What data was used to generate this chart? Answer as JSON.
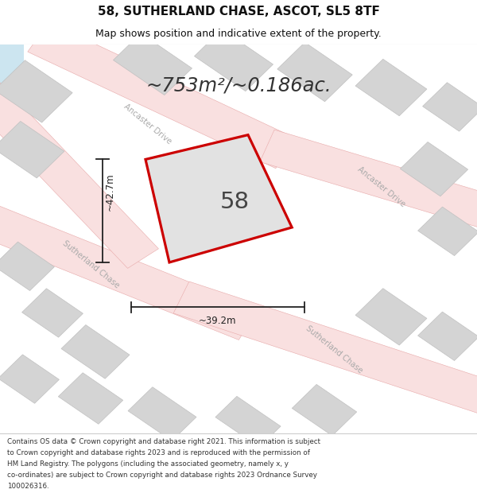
{
  "title_line1": "58, SUTHERLAND CHASE, ASCOT, SL5 8TF",
  "title_line2": "Map shows position and indicative extent of the property.",
  "area_text": "~753m²/~0.186ac.",
  "label_58": "58",
  "dim_vertical": "~42.7m",
  "dim_horizontal": "~39.2m",
  "footer_lines": [
    "Contains OS data © Crown copyright and database right 2021. This information is subject",
    "to Crown copyright and database rights 2023 and is reproduced with the permission of",
    "HM Land Registry. The polygons (including the associated geometry, namely x, y",
    "co-ordinates) are subject to Crown copyright and database rights 2023 Ordnance Survey",
    "100026316."
  ],
  "bg_color": "#ffffff",
  "map_bg": "#eeeeee",
  "road_color": "#f9e0e0",
  "road_edge_color": "#e8aaaa",
  "building_color": "#d4d4d4",
  "building_edge": "#c0c0c0",
  "plot_color": "#e2e2e2",
  "plot_edge": "#cc0000",
  "dim_color": "#222222",
  "street_text_color": "#aaaaaa",
  "title_color": "#111111",
  "footer_color": "#333333",
  "water_color": "#cce5f0"
}
